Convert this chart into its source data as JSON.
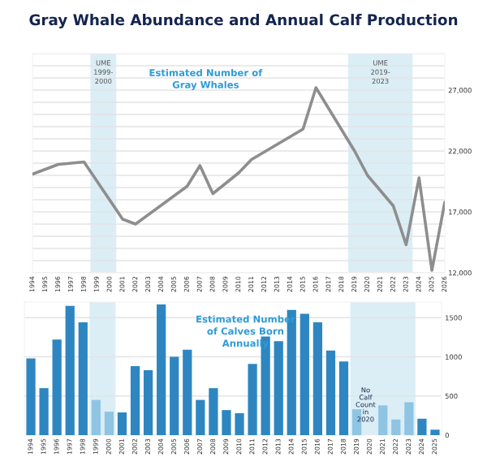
{
  "chart_data": [
    {
      "type": "line",
      "title": "Gray Whale Abundance and Annual Calf Production",
      "series": [
        {
          "color": "#8e8e8e",
          "x": [
            1994,
            1996,
            1998,
            2001,
            2002,
            2006,
            2007,
            2008,
            2010,
            2011,
            2015,
            2016,
            2019,
            2020,
            2022,
            2023,
            2024,
            2025,
            2026
          ],
          "values": [
            20100,
            20900,
            21100,
            16400,
            16000,
            19100,
            20800,
            18500,
            20200,
            21300,
            23800,
            27200,
            22000,
            20000,
            17500,
            14300,
            19800,
            12200,
            17800
          ]
        }
      ],
      "xlim": [
        1994,
        2026
      ],
      "xticks": [
        1994,
        1995,
        1996,
        1997,
        1998,
        1999,
        2000,
        2001,
        2002,
        2003,
        2004,
        2005,
        2006,
        2007,
        2008,
        2009,
        2010,
        2011,
        2012,
        2013,
        2014,
        2015,
        2016,
        2017,
        2018,
        2019,
        2020,
        2021,
        2022,
        2023,
        2024,
        2025,
        2026
      ],
      "ylim": [
        12000,
        30000
      ],
      "yticks": [
        {
          "value": 12000,
          "label": "12,000"
        },
        {
          "value": 13000,
          "label": null
        },
        {
          "value": 14000,
          "label": null
        },
        {
          "value": 15000,
          "label": null
        },
        {
          "value": 16000,
          "label": null
        },
        {
          "value": 17000,
          "label": "17,000"
        },
        {
          "value": 18000,
          "label": null
        },
        {
          "value": 19000,
          "label": null
        },
        {
          "value": 20000,
          "label": null
        },
        {
          "value": 21000,
          "label": null
        },
        {
          "value": 22000,
          "label": "22,000"
        },
        {
          "value": 23000,
          "label": null
        },
        {
          "value": 24000,
          "label": null
        },
        {
          "value": 25000,
          "label": null
        },
        {
          "value": 26000,
          "label": null
        },
        {
          "value": 27000,
          "label": "27,000"
        },
        {
          "value": 28000,
          "label": null
        },
        {
          "value": 29000,
          "label": null
        },
        {
          "value": 30000,
          "label": null
        }
      ],
      "grid": "y",
      "marker": "none",
      "line_style": "solid",
      "bands": [
        {
          "axis": "x",
          "from": 1998.5,
          "to": 2000.5,
          "label": "UME\n1999-\n2000",
          "color": "#dbeef6"
        },
        {
          "axis": "x",
          "from": 2018.5,
          "to": 2023.5,
          "label": "UME\n2019-\n2023",
          "color": "#dbeef6"
        }
      ],
      "annotations": [
        "Estimated Number of\nGray Whales"
      ]
    },
    {
      "type": "bar",
      "x": [
        1994,
        1995,
        1996,
        1997,
        1998,
        1999,
        2000,
        2001,
        2002,
        2003,
        2004,
        2005,
        2006,
        2007,
        2008,
        2009,
        2010,
        2011,
        2012,
        2013,
        2014,
        2015,
        2016,
        2017,
        2018,
        2019,
        2020,
        2021,
        2022,
        2023,
        2024,
        2025
      ],
      "values": [
        980,
        600,
        1220,
        1650,
        1440,
        450,
        300,
        290,
        880,
        830,
        1670,
        1000,
        1090,
        450,
        600,
        320,
        280,
        910,
        1260,
        1200,
        1600,
        1550,
        1440,
        1080,
        940,
        330,
        null,
        380,
        200,
        420,
        210,
        70
      ],
      "colors": [
        "#2e86c1",
        "#2e86c1",
        "#2e86c1",
        "#2e86c1",
        "#2e86c1",
        "#8fc4e3",
        "#8fc4e3",
        "#2e86c1",
        "#2e86c1",
        "#2e86c1",
        "#2e86c1",
        "#2e86c1",
        "#2e86c1",
        "#2e86c1",
        "#2e86c1",
        "#2e86c1",
        "#2e86c1",
        "#2e86c1",
        "#2e86c1",
        "#2e86c1",
        "#2e86c1",
        "#2e86c1",
        "#2e86c1",
        "#2e86c1",
        "#2e86c1",
        "#8fc4e3",
        "#8fc4e3",
        "#8fc4e3",
        "#8fc4e3",
        "#8fc4e3",
        "#2e86c1",
        "#2e86c1"
      ],
      "xlim": [
        1993.5,
        2025.5
      ],
      "xticks": [
        1994,
        1995,
        1996,
        1997,
        1998,
        1999,
        2000,
        2001,
        2002,
        2003,
        2004,
        2005,
        2006,
        2007,
        2008,
        2009,
        2010,
        2011,
        2012,
        2013,
        2014,
        2015,
        2016,
        2017,
        2018,
        2019,
        2020,
        2021,
        2022,
        2023,
        2024,
        2025
      ],
      "ylim": [
        0,
        1700
      ],
      "yticks": [
        0,
        500,
        1000,
        1500
      ],
      "grid": "y",
      "bands": [
        {
          "axis": "x",
          "from": 1998.5,
          "to": 2000.5,
          "color": "#dbeef6"
        },
        {
          "axis": "x",
          "from": 2018.5,
          "to": 2023.5,
          "color": "#dbeef6"
        }
      ],
      "annotations": [
        "Estimated Number\nof Calves Born\nAnnually",
        "No\nCalf\nCount\nin\n2020"
      ]
    }
  ]
}
